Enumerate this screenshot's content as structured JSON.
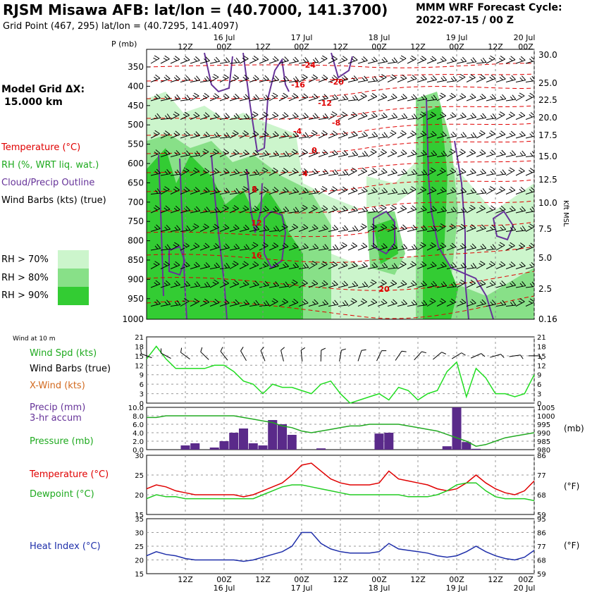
{
  "header": {
    "title": "RJSM Misawa AFB:  lat/lon = (40.7000, 141.3700)",
    "subtitle": "Grid Point (467, 295) lat/lon = (40.7295, 141.4097)",
    "cycle_label": "MMM WRF Forecast Cycle:",
    "cycle_value": "2022-07-15 / 00  Z",
    "model_grid_label": "Model Grid ΔX:",
    "model_grid_value": "15.000 km"
  },
  "legend": {
    "temperature": "Temperature (°C)",
    "rh": "RH (%, WRT liq. wat.)",
    "cloud": "Cloud/Precip Outline",
    "barbs": "Wind Barbs (kts) (true)",
    "rh70": "RH > 70%",
    "rh80": "RH > 80%",
    "rh90": "RH > 90%",
    "colors": {
      "temperature": "#e00000",
      "rh70": "#ccf5cc",
      "rh80": "#88e088",
      "rh90": "#33cc33",
      "cloud": "#663399"
    }
  },
  "time_axis": {
    "hour_labels": [
      "12Z",
      "00Z",
      "12Z",
      "00Z",
      "12Z",
      "00Z",
      "12Z",
      "00Z",
      "12Z",
      "00Z"
    ],
    "day_labels": [
      "16 Jul",
      "17 Jul",
      "18 Jul",
      "19 Jul",
      "20 Jul"
    ]
  },
  "sounding": {
    "p_label": "P (mb)",
    "pressure_ticks": [
      "350",
      "400",
      "450",
      "500",
      "550",
      "600",
      "650",
      "700",
      "750",
      "800",
      "850",
      "900",
      "950",
      "1000"
    ],
    "height_ticks": [
      "30.0",
      "25.0",
      "22.5",
      "20.0",
      "17.5",
      "15.0",
      "12.5",
      "10.0",
      "7.5",
      "5.0",
      "2.5",
      "0.16"
    ],
    "height_unit": "Kft MSL",
    "temperature_labels": [
      "-24",
      "-20",
      "-16",
      "-12",
      "-8",
      "-4",
      "0",
      "4",
      "8",
      "12",
      "16",
      "20"
    ]
  },
  "surface_wind": {
    "header": "Wind at 10 m",
    "spd_label": "Wind Spd (kts)",
    "barbs_label": "Wind Barbs (true)",
    "xwind_label": "X-Wind (kts)",
    "ticks": [
      "21",
      "18",
      "15",
      "12",
      "9",
      "6",
      "3",
      "0"
    ]
  },
  "precip_panel": {
    "precip_label": "Precip (mm)",
    "accum_label": "3-hr accum",
    "pressure_label": "Pressure (mb)",
    "left_ticks": [
      "10.0",
      "8.0",
      "6.0",
      "4.0",
      "2.0",
      "0.0"
    ],
    "right_ticks": [
      "1005",
      "1000",
      "995",
      "990",
      "985",
      "980"
    ],
    "right_unit": "(mb)"
  },
  "temp_panel": {
    "temp_label": "Temperature (°C)",
    "dew_label": "Dewpoint (°C)",
    "left_ticks": [
      "30",
      "25",
      "20",
      "15"
    ],
    "right_ticks": [
      "86",
      "77",
      "68",
      "59"
    ],
    "right_unit": "(°F)"
  },
  "heat_panel": {
    "label": "Heat Index (°C)",
    "left_ticks": [
      "35",
      "30",
      "25",
      "20",
      "15"
    ],
    "right_ticks": [
      "95",
      "86",
      "77",
      "68",
      "59"
    ],
    "right_unit": "(°F)"
  },
  "chart_data": [
    {
      "type": "line",
      "title": "Wind at 10 m",
      "ylim": [
        0,
        21
      ],
      "x_hours": [
        0,
        3,
        6,
        9,
        12,
        15,
        18,
        21,
        24,
        27,
        30,
        33,
        36,
        39,
        42,
        45,
        48,
        51,
        54,
        57,
        60,
        63,
        66,
        69,
        72,
        75,
        78,
        81,
        84,
        87,
        90,
        93,
        96,
        99,
        102,
        105,
        108,
        111,
        114,
        117,
        120
      ],
      "series": [
        {
          "name": "Wind Spd (kts)",
          "values": [
            14,
            18,
            14,
            11,
            11,
            11,
            11,
            12,
            12,
            10,
            7,
            6,
            3,
            6,
            5,
            5,
            4,
            3,
            6,
            7,
            3,
            0,
            1,
            2,
            3,
            1,
            5,
            4,
            1,
            3,
            4,
            10,
            13,
            2,
            11,
            8,
            3,
            3,
            2,
            3,
            9
          ]
        }
      ]
    },
    {
      "type": "bar",
      "title": "Precip (mm) 3-hr accum",
      "ylim": [
        0,
        10
      ],
      "x_hours": [
        0,
        3,
        6,
        9,
        12,
        15,
        18,
        21,
        24,
        27,
        30,
        33,
        36,
        39,
        42,
        45,
        48,
        51,
        54,
        57,
        60,
        63,
        66,
        69,
        72,
        75,
        78,
        81,
        84,
        87,
        90,
        93,
        96,
        99,
        102,
        105,
        108,
        111,
        114,
        117,
        120
      ],
      "values": [
        0,
        0,
        0,
        0,
        1,
        1.5,
        0,
        0.5,
        2,
        4,
        5,
        1.5,
        1,
        7,
        6,
        3.5,
        0,
        0,
        0.3,
        0,
        0,
        0,
        0,
        0,
        3.8,
        4,
        0,
        0,
        0,
        0,
        0,
        0.8,
        10,
        1.8,
        0.2,
        0,
        0,
        0,
        0,
        0,
        0
      ]
    },
    {
      "type": "line",
      "title": "Pressure (mb)",
      "ylim": [
        980,
        1005
      ],
      "x_hours": [
        0,
        3,
        6,
        9,
        12,
        15,
        18,
        21,
        24,
        27,
        30,
        33,
        36,
        39,
        42,
        45,
        48,
        51,
        54,
        57,
        60,
        63,
        66,
        69,
        72,
        75,
        78,
        81,
        84,
        87,
        90,
        93,
        96,
        99,
        102,
        105,
        108,
        111,
        114,
        117,
        120
      ],
      "series": [
        {
          "name": "Pressure (mb)",
          "values": [
            999,
            999,
            1000,
            1000,
            1000,
            1000,
            1000,
            1000,
            1000,
            1000,
            999,
            998,
            997,
            996,
            994,
            993,
            991,
            990,
            991,
            992,
            993,
            994,
            994,
            995,
            995,
            995,
            995,
            994,
            993,
            992,
            991,
            989,
            987,
            985,
            982,
            983,
            985,
            987,
            988,
            989,
            990
          ]
        }
      ]
    },
    {
      "type": "line",
      "title": "Temperature / Dewpoint (°C)",
      "ylim": [
        15,
        30
      ],
      "x_hours": [
        0,
        3,
        6,
        9,
        12,
        15,
        18,
        21,
        24,
        27,
        30,
        33,
        36,
        39,
        42,
        45,
        48,
        51,
        54,
        57,
        60,
        63,
        66,
        69,
        72,
        75,
        78,
        81,
        84,
        87,
        90,
        93,
        96,
        99,
        102,
        105,
        108,
        111,
        114,
        117,
        120
      ],
      "series": [
        {
          "name": "Temperature (°C)",
          "values": [
            21.5,
            22.5,
            22,
            21,
            20.5,
            20,
            20,
            20,
            20,
            20,
            19.5,
            20,
            21,
            22,
            23,
            25,
            27.5,
            28,
            26,
            24,
            23,
            22.5,
            22.5,
            22.5,
            23,
            26,
            24,
            23.5,
            23,
            22.5,
            21.5,
            21,
            21.5,
            23,
            25,
            23,
            21.5,
            20.5,
            20,
            21,
            23.5
          ]
        },
        {
          "name": "Dewpoint (°C)",
          "values": [
            19,
            20,
            19.5,
            19.5,
            19,
            19,
            19,
            19,
            19,
            19,
            19,
            19,
            20,
            21,
            22,
            22.5,
            22.5,
            22,
            21.5,
            21,
            20.5,
            20,
            20,
            20,
            20,
            20,
            20,
            19.5,
            19.5,
            19.5,
            20,
            21,
            22.5,
            23,
            23,
            21,
            19.5,
            19,
            19,
            19,
            18.5
          ]
        }
      ]
    },
    {
      "type": "line",
      "title": "Heat Index (°C)",
      "ylim": [
        15,
        35
      ],
      "x_hours": [
        0,
        3,
        6,
        9,
        12,
        15,
        18,
        21,
        24,
        27,
        30,
        33,
        36,
        39,
        42,
        45,
        48,
        51,
        54,
        57,
        60,
        63,
        66,
        69,
        72,
        75,
        78,
        81,
        84,
        87,
        90,
        93,
        96,
        99,
        102,
        105,
        108,
        111,
        114,
        117,
        120
      ],
      "series": [
        {
          "name": "Heat Index (°C)",
          "values": [
            21.5,
            23,
            22,
            21.5,
            20.5,
            20,
            20,
            20,
            20,
            20,
            19.5,
            20,
            21,
            22,
            23,
            25,
            30,
            30,
            26,
            24,
            23,
            22.5,
            22.5,
            22.5,
            23,
            26,
            24,
            23.5,
            23,
            22.5,
            21.5,
            21,
            21.5,
            23,
            25,
            23,
            21.5,
            20.5,
            20,
            21,
            23.5
          ]
        }
      ]
    }
  ]
}
